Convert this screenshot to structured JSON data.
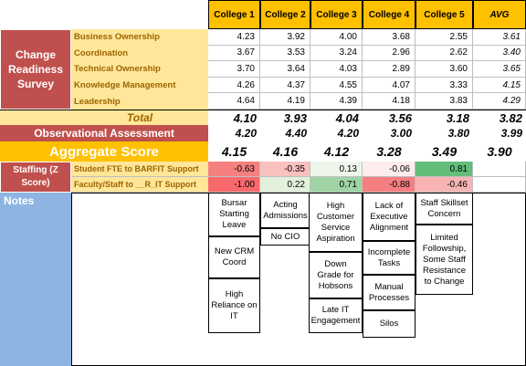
{
  "headers": [
    "College 1",
    "College 2",
    "College 3",
    "College 4",
    "College 5",
    "AVG"
  ],
  "survey_label": "Change Readiness Survey",
  "rows": [
    {
      "label": "Business Ownership",
      "values": [
        "4.23",
        "3.92",
        "4.00",
        "3.68",
        "2.55",
        "3.61"
      ]
    },
    {
      "label": "Coordination",
      "values": [
        "3.67",
        "3.53",
        "3.24",
        "2.96",
        "2.62",
        "3.40"
      ]
    },
    {
      "label": "Technical Ownership",
      "values": [
        "3.70",
        "3.64",
        "4.03",
        "2.89",
        "3.60",
        "3.65"
      ]
    },
    {
      "label": "Knowledge Management",
      "values": [
        "4.26",
        "4.37",
        "4.55",
        "4.07",
        "3.33",
        "4.15"
      ]
    },
    {
      "label": "Leadership",
      "values": [
        "4.64",
        "4.19",
        "4.39",
        "4.18",
        "3.83",
        "4.29"
      ]
    }
  ],
  "total": {
    "label": "Total",
    "values": [
      "4.10",
      "3.93",
      "4.04",
      "3.56",
      "3.18",
      "3.82"
    ]
  },
  "observational": {
    "label": "Observational Assessment",
    "values": [
      "4.20",
      "4.40",
      "4.20",
      "3.00",
      "3.80",
      "3.99"
    ]
  },
  "aggregate": {
    "label": "Aggregate Score",
    "values": [
      "4.15",
      "4.16",
      "4.12",
      "3.28",
      "3.49",
      "3.90"
    ]
  },
  "staffing": {
    "label": "Staffing (Z Score)",
    "rows": [
      {
        "label": "Student FTE to  BARFIT Support",
        "values": [
          "-0.63",
          "-0.35",
          "0.13",
          "-0.06",
          "0.81"
        ],
        "colors": [
          "#f4817f",
          "#f8c0bf",
          "#eef5ea",
          "#fcecec",
          "#63be7b"
        ]
      },
      {
        "label": "Faculty/Staff to __R_IT Support",
        "values": [
          "-1.00",
          "0.22",
          "0.71",
          "-0.88",
          "-0.46"
        ],
        "colors": [
          "#f8696b",
          "#e3f0dc",
          "#9fd4a5",
          "#f57f80",
          "#f8b4b4"
        ]
      }
    ]
  },
  "notes": {
    "label": "Notes",
    "c1": [
      "Bursar Starting Leave",
      "New CRM Coord",
      "High Reliance on IT"
    ],
    "c2": [
      "Acting Admissions",
      "No CIO"
    ],
    "c3": [
      "High Customer Service Aspiration",
      "Down Grade for Hobsons",
      "Late IT Engagement"
    ],
    "c4": [
      "Lack of Executive Alignment",
      "Incomplete Tasks",
      "Manual Processes",
      "Silos"
    ],
    "c5": [
      "Staff Skillset Concern",
      "Limited Followship, Some Staff Resistance to Change"
    ]
  }
}
